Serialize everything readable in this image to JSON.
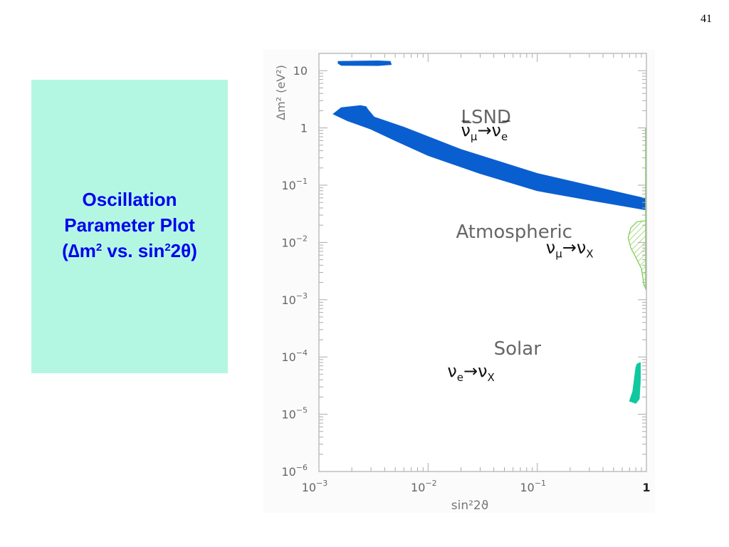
{
  "slide": {
    "number": "41"
  },
  "title_box": {
    "line1": "Oscillation",
    "line2": "Parameter Plot",
    "line3_prefix": "(",
    "delta": "∆",
    "m": "m",
    "sup1": "2",
    "vs": " vs. sin",
    "sup2": "2",
    "two": "2",
    "theta": "θ",
    "line3_suffix": ")"
  },
  "colors": {
    "title_box_bg": "#b3f7e3",
    "title_text": "#0000ee",
    "lsnd": "#0a5fd0",
    "solar": "#10c8a0",
    "atmospheric": "#7cc94a"
  },
  "chart_data": {
    "type": "area",
    "xlabel": "sin²2ϑ",
    "ylabel": "Δm² (eV²)",
    "x_scale": "log",
    "y_scale": "log",
    "xlim": [
      0.001,
      1
    ],
    "ylim": [
      1e-06,
      20
    ],
    "x_ticks": [
      {
        "value": 0.001,
        "base": "10",
        "exp": "−3"
      },
      {
        "value": 0.01,
        "base": "10",
        "exp": "−2"
      },
      {
        "value": 0.1,
        "base": "10",
        "exp": "−1"
      },
      {
        "value": 1,
        "base": "1",
        "exp": ""
      }
    ],
    "y_ticks": [
      {
        "value": 10,
        "base": "10",
        "exp": ""
      },
      {
        "value": 1,
        "base": "1",
        "exp": ""
      },
      {
        "value": 0.1,
        "base": "10",
        "exp": "−1"
      },
      {
        "value": 0.01,
        "base": "10",
        "exp": "−2"
      },
      {
        "value": 0.001,
        "base": "10",
        "exp": "−3"
      },
      {
        "value": 0.0001,
        "base": "10",
        "exp": "−4"
      },
      {
        "value": 1e-05,
        "base": "10",
        "exp": "−5"
      },
      {
        "value": 1e-06,
        "base": "10",
        "exp": "−6"
      }
    ],
    "regions": [
      {
        "name": "LSND",
        "channel": {
          "a": "ν",
          "a_sub": "μ",
          "arrow": "→",
          "b": "ν",
          "b_sub": "e",
          "bar": true
        },
        "label_at": [
          0.02,
          1.2
        ],
        "channel_at": [
          0.02,
          0.72
        ],
        "style": "solid",
        "color": "#0a5fd0",
        "islands": [
          [
            [
              0.0015,
              14.5
            ],
            [
              0.0035,
              14.8
            ],
            [
              0.0045,
              14.5
            ],
            [
              0.0046,
              12.8
            ],
            [
              0.0035,
              12.3
            ],
            [
              0.0016,
              12.4
            ],
            [
              0.0015,
              13.4
            ]
          ],
          [
            [
              0.00135,
              1.75
            ],
            [
              0.0016,
              2.25
            ],
            [
              0.0024,
              2.45
            ],
            [
              0.0027,
              2.35
            ],
            [
              0.0028,
              2.1
            ],
            [
              0.0032,
              1.55
            ],
            [
              0.006,
              1.03
            ],
            [
              0.02,
              0.42
            ],
            [
              0.1,
              0.16
            ],
            [
              1,
              0.058
            ],
            [
              1,
              0.037
            ],
            [
              0.3,
              0.055
            ],
            [
              0.1,
              0.08
            ],
            [
              0.03,
              0.16
            ],
            [
              0.01,
              0.33
            ],
            [
              0.005,
              0.6
            ],
            [
              0.003,
              0.95
            ],
            [
              0.0018,
              1.35
            ]
          ]
        ]
      },
      {
        "name": "Atmospheric",
        "channel": {
          "a": "ν",
          "a_sub": "μ",
          "arrow": "→",
          "b": "ν",
          "b_sub": "X",
          "bar": false
        },
        "label_at": [
          0.018,
          0.012
        ],
        "channel_at": [
          0.12,
          0.0065
        ],
        "style": "hatched",
        "color": "#7cc94a",
        "islands": [
          [
            [
              0.8,
              0.0055
            ],
            [
              0.72,
              0.008
            ],
            [
              0.68,
              0.012
            ],
            [
              0.72,
              0.018
            ],
            [
              0.82,
              0.023
            ],
            [
              1,
              0.024
            ],
            [
              1,
              0.0015
            ],
            [
              0.95,
              0.0018
            ],
            [
              0.9,
              0.0035
            ]
          ]
        ]
      },
      {
        "name": "Solar",
        "channel": {
          "a": "ν",
          "a_sub": "e",
          "arrow": "→",
          "b": "ν",
          "b_sub": "X",
          "bar": false
        },
        "label_at": [
          0.04,
          0.00011
        ],
        "channel_at": [
          0.015,
          4.5e-05
        ],
        "style": "solid",
        "color": "#10c8a0",
        "islands": [
          [
            [
              0.8,
              6.5e-05
            ],
            [
              0.75,
              2.5e-05
            ],
            [
              0.7,
              1.7e-05
            ],
            [
              0.8,
              1.55e-05
            ],
            [
              0.86,
              1.85e-05
            ],
            [
              0.88,
              4e-05
            ],
            [
              0.88,
              8e-05
            ],
            [
              0.82,
              7.5e-05
            ]
          ]
        ]
      }
    ],
    "boundary_line": {
      "name": "atmospheric-limit",
      "x": 1,
      "ylim": [
        0.0015,
        1
      ],
      "color": "#7cc94a"
    }
  }
}
